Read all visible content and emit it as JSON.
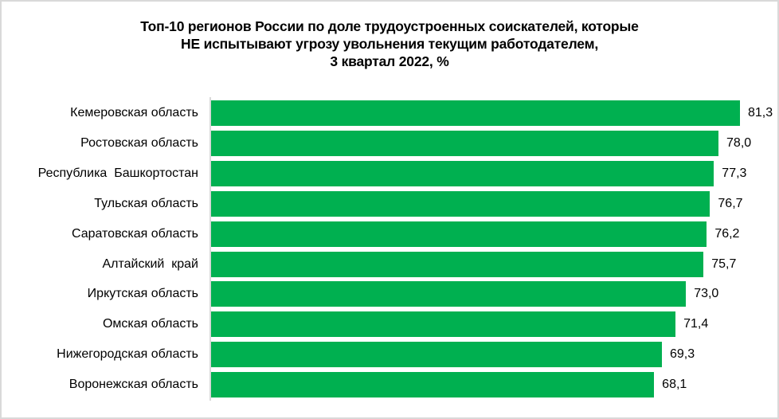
{
  "chart_data": {
    "type": "bar",
    "orientation": "horizontal",
    "title": "Топ-10 регионов России по доле трудоустроенных соискателей, которые НЕ испытывают угрозу увольнения текущим работодателем, 3 квартал 2022, %",
    "title_lines": [
      "Топ-10 регионов России по доле трудоустроенных соискателей, которые",
      "НЕ испытывают угрозу увольнения текущим работодателем,",
      "3 квартал 2022, %"
    ],
    "categories": [
      "Кемеровская область",
      "Ростовская область",
      "Республика  Башкортостан",
      "Тульская область",
      "Саратовская область",
      "Алтайский  край",
      "Иркутская область",
      "Омская область",
      "Нижегородская область",
      "Воронежская область"
    ],
    "values": [
      81.3,
      78.0,
      77.3,
      76.7,
      76.2,
      75.7,
      73.0,
      71.4,
      69.3,
      68.1
    ],
    "value_labels": [
      "81,3",
      "78,0",
      "77,3",
      "76,7",
      "76,2",
      "75,7",
      "73,0",
      "71,4",
      "69,3",
      "68,1"
    ],
    "xlabel": "",
    "ylabel": "",
    "xlim": [
      0,
      85
    ],
    "grid": false,
    "legend": null,
    "bar_color": "#00b050"
  }
}
